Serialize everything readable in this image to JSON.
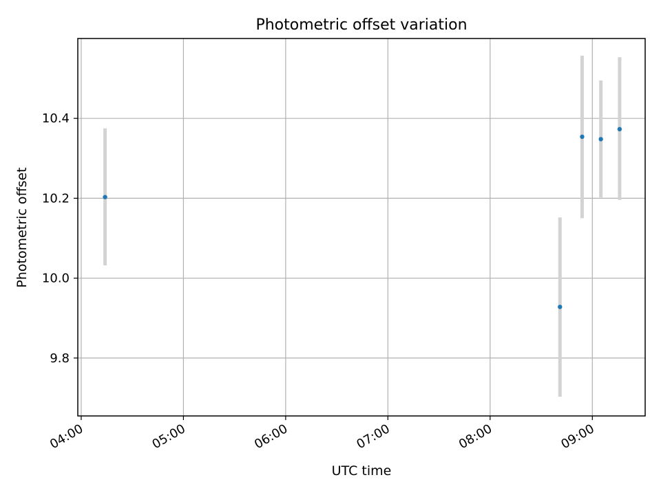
{
  "chart_data": {
    "type": "scatter",
    "title": "Photometric offset variation",
    "xlabel": "UTC time",
    "ylabel": "Photometric offset",
    "grid": true,
    "xlim": [
      "03:58",
      "09:31"
    ],
    "ylim": [
      9.655,
      10.6
    ],
    "x_ticks": [
      "04:00",
      "05:00",
      "06:00",
      "07:00",
      "08:00",
      "09:00"
    ],
    "y_ticks": [
      9.8,
      10.0,
      10.2,
      10.4
    ],
    "y_tick_labels": [
      "9.8",
      "10.0",
      "10.2",
      "10.4"
    ],
    "point_color": "#1f77b4",
    "errorbar_color": "#d3d3d3",
    "points": [
      {
        "x": "04:14",
        "y": 10.203,
        "ylow": 10.032,
        "yhigh": 10.375
      },
      {
        "x": "08:41",
        "y": 9.928,
        "ylow": 9.703,
        "yhigh": 10.152
      },
      {
        "x": "08:54",
        "y": 10.354,
        "ylow": 10.15,
        "yhigh": 10.557
      },
      {
        "x": "09:05",
        "y": 10.348,
        "ylow": 10.202,
        "yhigh": 10.495
      },
      {
        "x": "09:16",
        "y": 10.373,
        "ylow": 10.196,
        "yhigh": 10.553
      }
    ]
  }
}
